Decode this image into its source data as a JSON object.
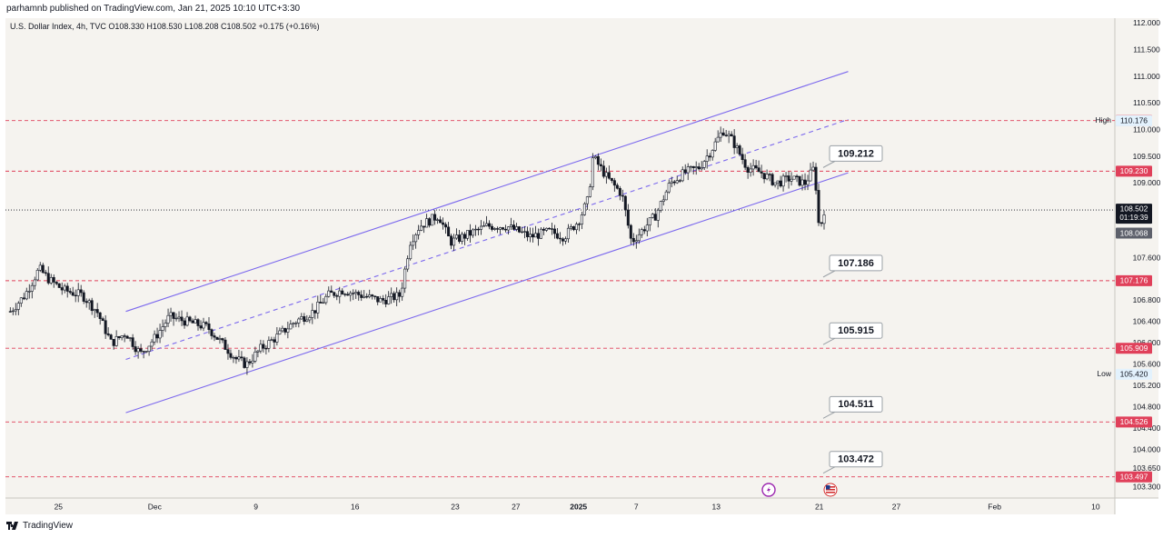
{
  "header": {
    "published_by": "parhamnb published on TradingView.com, Jan 21, 2025 10:10 UTC+3:30",
    "symbol_line": "U.S. Dollar Index, 4h, TVC  O108.330  H108.530  L108.208  C108.502  +0.175 (+0.16%)"
  },
  "footer": {
    "brand": "TradingView"
  },
  "colors": {
    "background": "#f5f3ef",
    "up_candle": "#ffffff",
    "down_candle": "#131722",
    "channel": "#7b68ee",
    "level_line": "#e0405a",
    "level_badge": "#e0405a",
    "price_badge": "#131722"
  },
  "chart_data": {
    "type": "candlestick",
    "title": "U.S. Dollar Index, 4h, TVC",
    "timeframe": "4h",
    "ylim": [
      103.1,
      112.1
    ],
    "y_ticks": [
      "112.000",
      "111.500",
      "111.000",
      "110.500",
      "110.000",
      "109.500",
      "109.000",
      "107.600",
      "106.800",
      "106.400",
      "106.000",
      "105.600",
      "105.200",
      "104.800",
      "104.400",
      "104.000",
      "103.650",
      "103.300"
    ],
    "x_ticks": [
      {
        "label": "25",
        "t": 0.055
      },
      {
        "label": "Dec",
        "t": 0.155
      },
      {
        "label": "9",
        "t": 0.26
      },
      {
        "label": "16",
        "t": 0.363
      },
      {
        "label": "23",
        "t": 0.467
      },
      {
        "label": "27",
        "t": 0.53
      },
      {
        "label": "2025",
        "t": 0.595
      },
      {
        "label": "7",
        "t": 0.655
      },
      {
        "label": "13",
        "t": 0.738
      },
      {
        "label": "21",
        "t": 0.845
      },
      {
        "label": "27",
        "t": 0.925
      },
      {
        "label": "Feb",
        "t": 1.027
      },
      {
        "label": "10",
        "t": 1.132
      }
    ],
    "price_path": [
      {
        "t": 0.005,
        "p": 106.6
      },
      {
        "t": 0.02,
        "p": 106.9
      },
      {
        "t": 0.035,
        "p": 107.4
      },
      {
        "t": 0.045,
        "p": 107.2
      },
      {
        "t": 0.06,
        "p": 107.0
      },
      {
        "t": 0.08,
        "p": 106.9
      },
      {
        "t": 0.095,
        "p": 106.6
      },
      {
        "t": 0.11,
        "p": 106.0
      },
      {
        "t": 0.125,
        "p": 106.2
      },
      {
        "t": 0.14,
        "p": 105.8
      },
      {
        "t": 0.155,
        "p": 106.1
      },
      {
        "t": 0.17,
        "p": 106.5
      },
      {
        "t": 0.19,
        "p": 106.4
      },
      {
        "t": 0.21,
        "p": 106.3
      },
      {
        "t": 0.225,
        "p": 106.0
      },
      {
        "t": 0.24,
        "p": 105.7
      },
      {
        "t": 0.25,
        "p": 105.6
      },
      {
        "t": 0.265,
        "p": 105.9
      },
      {
        "t": 0.28,
        "p": 106.1
      },
      {
        "t": 0.3,
        "p": 106.4
      },
      {
        "t": 0.32,
        "p": 106.6
      },
      {
        "t": 0.335,
        "p": 106.9
      },
      {
        "t": 0.35,
        "p": 107.0
      },
      {
        "t": 0.37,
        "p": 106.9
      },
      {
        "t": 0.39,
        "p": 106.8
      },
      {
        "t": 0.41,
        "p": 106.9
      },
      {
        "t": 0.42,
        "p": 107.9
      },
      {
        "t": 0.43,
        "p": 108.2
      },
      {
        "t": 0.45,
        "p": 108.4
      },
      {
        "t": 0.462,
        "p": 107.9
      },
      {
        "t": 0.475,
        "p": 108.0
      },
      {
        "t": 0.5,
        "p": 108.2
      },
      {
        "t": 0.52,
        "p": 108.2
      },
      {
        "t": 0.545,
        "p": 108.0
      },
      {
        "t": 0.565,
        "p": 108.1
      },
      {
        "t": 0.58,
        "p": 108.0
      },
      {
        "t": 0.595,
        "p": 108.3
      },
      {
        "t": 0.605,
        "p": 108.7
      },
      {
        "t": 0.61,
        "p": 109.5
      },
      {
        "t": 0.625,
        "p": 109.1
      },
      {
        "t": 0.64,
        "p": 108.8
      },
      {
        "t": 0.65,
        "p": 107.9
      },
      {
        "t": 0.66,
        "p": 108.1
      },
      {
        "t": 0.675,
        "p": 108.4
      },
      {
        "t": 0.69,
        "p": 109.0
      },
      {
        "t": 0.705,
        "p": 109.2
      },
      {
        "t": 0.72,
        "p": 109.3
      },
      {
        "t": 0.732,
        "p": 109.6
      },
      {
        "t": 0.745,
        "p": 110.0
      },
      {
        "t": 0.755,
        "p": 109.8
      },
      {
        "t": 0.77,
        "p": 109.3
      },
      {
        "t": 0.785,
        "p": 109.2
      },
      {
        "t": 0.8,
        "p": 109.0
      },
      {
        "t": 0.815,
        "p": 109.1
      },
      {
        "t": 0.83,
        "p": 109.0
      },
      {
        "t": 0.84,
        "p": 109.3
      },
      {
        "t": 0.845,
        "p": 108.1
      },
      {
        "t": 0.85,
        "p": 108.5
      }
    ],
    "channel": {
      "upper": [
        {
          "t": 0.125,
          "p": 106.6
        },
        {
          "t": 0.875,
          "p": 111.1
        }
      ],
      "middle_dashed": [
        {
          "t": 0.125,
          "p": 105.7
        },
        {
          "t": 0.875,
          "p": 110.2
        }
      ],
      "lower": [
        {
          "t": 0.125,
          "p": 104.7
        },
        {
          "t": 0.875,
          "p": 109.2
        }
      ]
    },
    "levels": [
      {
        "value": 110.18,
        "axis_label": "110.180",
        "note": ""
      },
      {
        "value": 109.23,
        "axis_label": "109.230",
        "note": "109.212"
      },
      {
        "value": 107.176,
        "axis_label": "107.176",
        "note": "107.186"
      },
      {
        "value": 105.909,
        "axis_label": "105.909",
        "note": "105.915"
      },
      {
        "value": 104.526,
        "axis_label": "104.526",
        "note": "104.511"
      },
      {
        "value": 103.497,
        "axis_label": "103.497",
        "note": "103.472"
      }
    ],
    "current_price": {
      "value": 108.502,
      "label": "108.502",
      "countdown": "01:19:39"
    },
    "prev_price": {
      "value": 108.068,
      "label": "108.068"
    },
    "high": {
      "value": 110.176,
      "label": "High",
      "price": "110.176"
    },
    "low": {
      "value": 105.42,
      "label": "Low",
      "price": "105.420"
    }
  }
}
